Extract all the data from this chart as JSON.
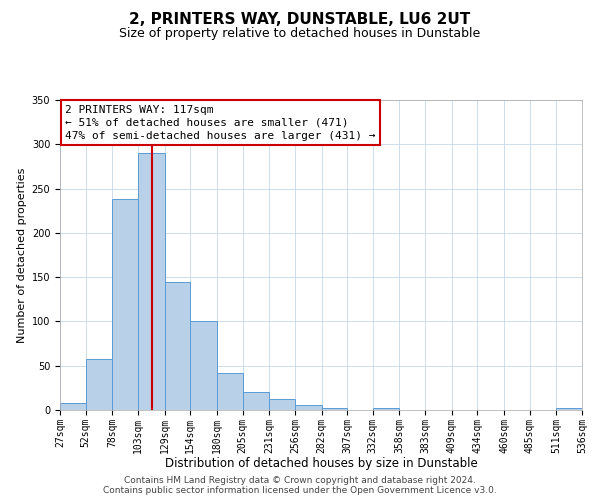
{
  "title": "2, PRINTERS WAY, DUNSTABLE, LU6 2UT",
  "subtitle": "Size of property relative to detached houses in Dunstable",
  "xlabel": "Distribution of detached houses by size in Dunstable",
  "ylabel": "Number of detached properties",
  "bin_edges": [
    27,
    52,
    78,
    103,
    129,
    154,
    180,
    205,
    231,
    256,
    282,
    307,
    332,
    358,
    383,
    409,
    434,
    460,
    485,
    511,
    536
  ],
  "bar_heights": [
    8,
    58,
    238,
    290,
    145,
    100,
    42,
    20,
    12,
    6,
    2,
    0,
    2,
    0,
    0,
    0,
    0,
    0,
    0,
    2
  ],
  "bar_color": "#b8d0e8",
  "bar_edgecolor": "#5b9bd5",
  "vline_x": 117,
  "vline_color": "#cc0000",
  "ylim": [
    0,
    350
  ],
  "annotation_box_text": "2 PRINTERS WAY: 117sqm\n← 51% of detached houses are smaller (471)\n47% of semi-detached houses are larger (431) →",
  "footnote1": "Contains HM Land Registry data © Crown copyright and database right 2024.",
  "footnote2": "Contains public sector information licensed under the Open Government Licence v3.0.",
  "background_color": "#ffffff",
  "grid_color": "#c8d8e8",
  "title_fontsize": 11,
  "subtitle_fontsize": 9,
  "xlabel_fontsize": 8.5,
  "ylabel_fontsize": 8,
  "tick_fontsize": 7,
  "annotation_fontsize": 8,
  "footnote_fontsize": 6.5
}
